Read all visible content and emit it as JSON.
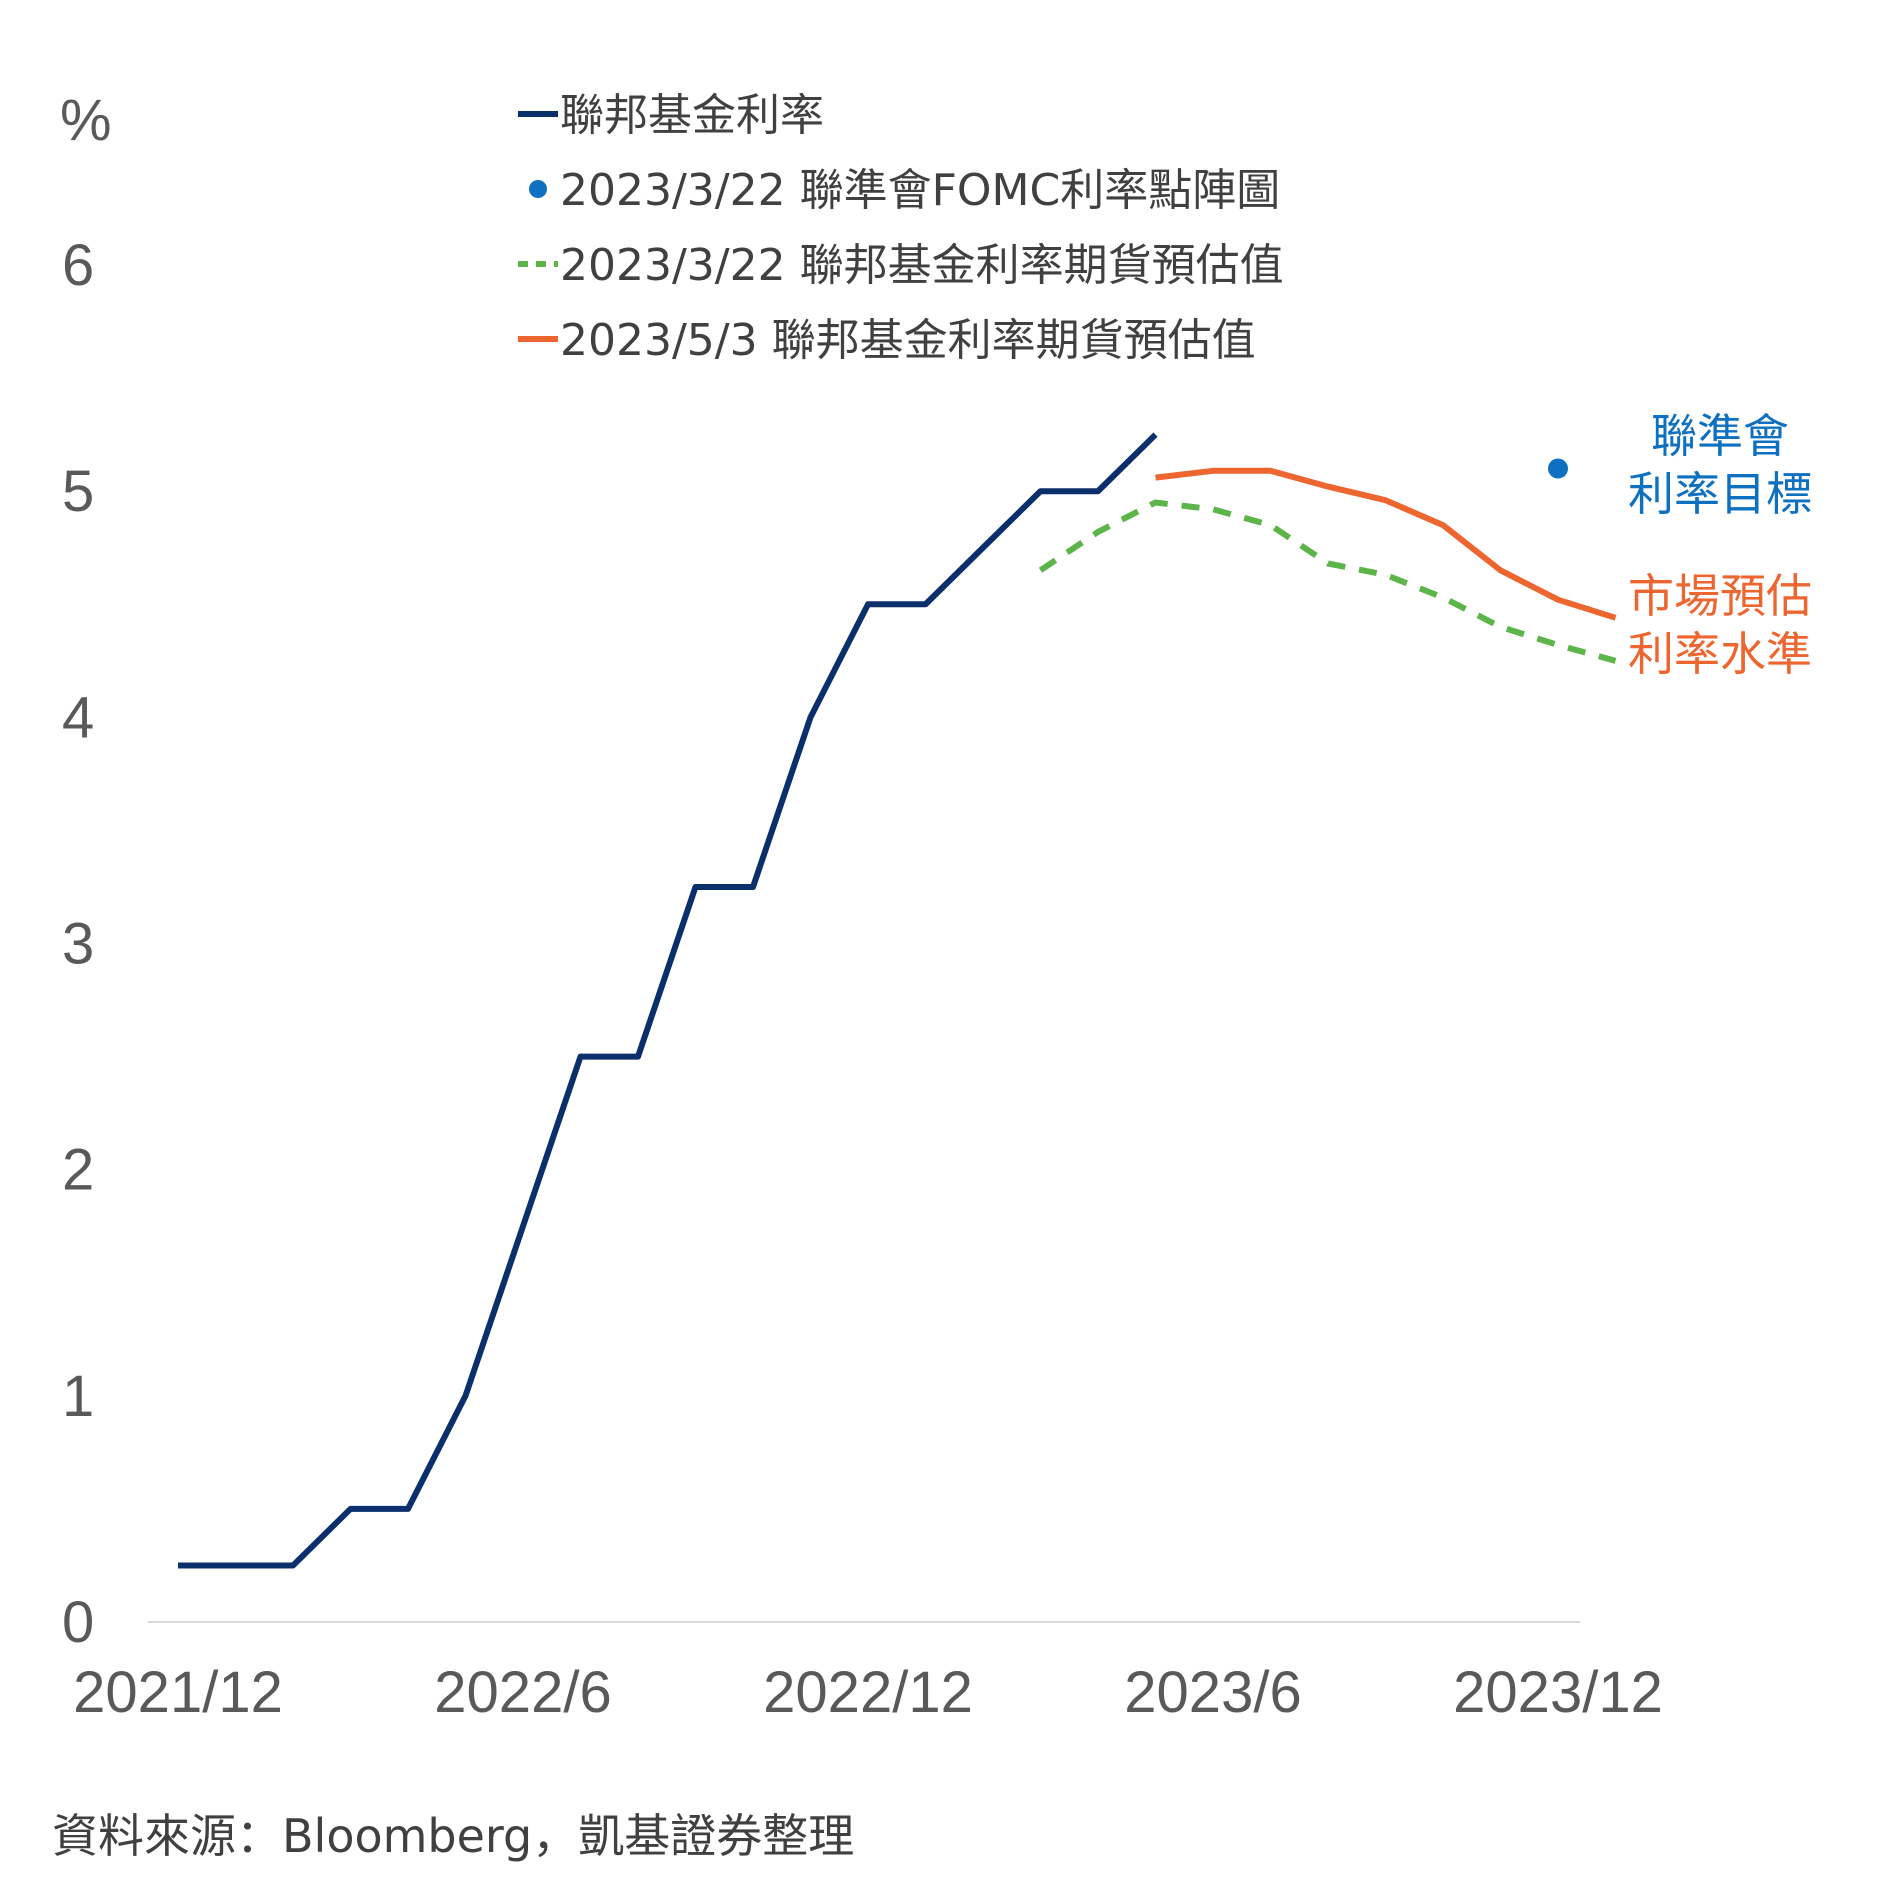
{
  "chart_data": {
    "type": "line",
    "ylabel": "%",
    "ylim": [
      0,
      6
    ],
    "yticks": [
      "0",
      "1",
      "2",
      "3",
      "4",
      "5",
      "6"
    ],
    "xtick_labels": [
      {
        "label": "2021/12",
        "month_index": 0
      },
      {
        "label": "2022/6",
        "month_index": 6
      },
      {
        "label": "2022/12",
        "month_index": 12
      },
      {
        "label": "2023/6",
        "month_index": 18
      },
      {
        "label": "2023/12",
        "month_index": 24
      }
    ],
    "series": [
      {
        "name": "聯邦基金利率",
        "style": "solid",
        "color": "#0b2f6b",
        "x": [
          0,
          1,
          2,
          3,
          4,
          5,
          6,
          7,
          8,
          9,
          10,
          11,
          12,
          13,
          14,
          15,
          16,
          17
        ],
        "values": [
          0.25,
          0.25,
          0.25,
          0.5,
          0.5,
          1.0,
          1.75,
          2.5,
          2.5,
          3.25,
          3.25,
          4.0,
          4.5,
          4.5,
          4.75,
          5.0,
          5.0,
          5.25
        ]
      },
      {
        "name": "2023/3/22 聯準會FOMC利率點陣圖",
        "style": "dot",
        "color": "#0e70c0",
        "x": [
          24
        ],
        "values": [
          5.1
        ]
      },
      {
        "name": "2023/3/22 聯邦基金利率期貨預估值",
        "style": "dashed",
        "color": "#5bb548",
        "x": [
          15,
          16,
          17,
          18,
          19,
          20,
          21,
          22,
          23,
          24,
          25
        ],
        "values": [
          4.65,
          4.82,
          4.95,
          4.92,
          4.85,
          4.68,
          4.63,
          4.53,
          4.4,
          4.32,
          4.25
        ]
      },
      {
        "name": "2023/5/3 聯邦基金利率期貨預估值",
        "style": "solid",
        "color": "#ed6630",
        "x": [
          17,
          18,
          19,
          20,
          21,
          22,
          23,
          24,
          25
        ],
        "values": [
          5.06,
          5.09,
          5.09,
          5.02,
          4.96,
          4.85,
          4.65,
          4.52,
          4.44
        ]
      }
    ],
    "annotations": [
      {
        "lines": [
          "聯準會",
          "利率目標"
        ],
        "color": "#0e70c0"
      },
      {
        "lines": [
          "市場預估",
          "利率水準"
        ],
        "color": "#ed6630"
      }
    ],
    "grid": false,
    "legend_position": "top-center"
  },
  "source": "資料來源：Bloomberg，凱基證券整理"
}
